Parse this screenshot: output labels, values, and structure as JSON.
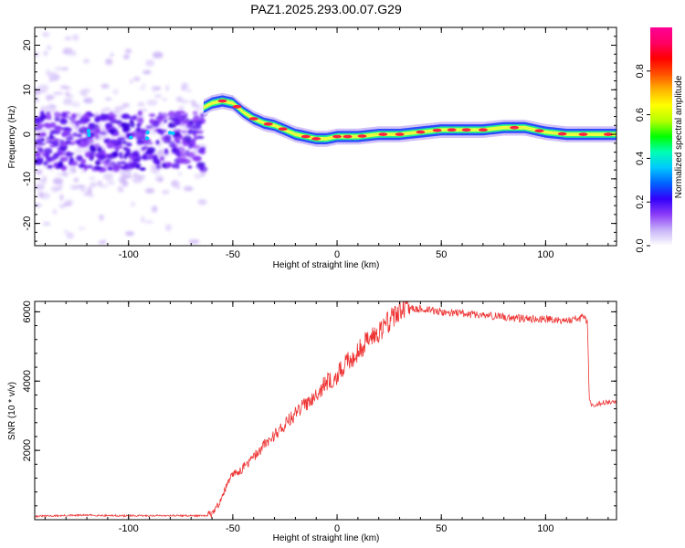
{
  "title": "PAZ1.2025.293.00.07.G29",
  "chart_data": [
    {
      "type": "heatmap",
      "name": "spectrogram",
      "xlabel": "Height of straight line (km)",
      "ylabel": "Frequency (Hz)",
      "xlim": [
        -145,
        134
      ],
      "ylim": [
        -25,
        24
      ],
      "xticks": [
        -100,
        -50,
        0,
        50,
        100
      ],
      "yticks": [
        -20,
        -10,
        0,
        10,
        20
      ],
      "xtick_labels": [
        "-100",
        "-50",
        "0",
        "50",
        "100"
      ],
      "ytick_labels": [
        "-20",
        "-10",
        "0",
        "10",
        "20"
      ],
      "noise_region": {
        "x_range": [
          -145,
          -64
        ],
        "core_frequency_band": [
          -8,
          5
        ],
        "halo_frequency_band": [
          -25,
          24
        ]
      },
      "signal_ridge": {
        "x": [
          -64,
          -60,
          -55,
          -50,
          -45,
          -40,
          -35,
          -30,
          -25,
          -20,
          -15,
          -10,
          -5,
          0,
          10,
          20,
          30,
          40,
          50,
          60,
          70,
          80,
          85,
          90,
          100,
          110,
          120,
          134
        ],
        "frequency": [
          6,
          7,
          7.5,
          7,
          5,
          3.5,
          2.5,
          2,
          1,
          0,
          -0.5,
          -1,
          -1,
          -0.5,
          -0.5,
          0,
          0,
          0.5,
          1,
          1,
          1,
          1.5,
          1.5,
          1.5,
          0.5,
          0,
          0,
          0
        ]
      },
      "colorbar": {
        "label": "Normalized spectral amplitude",
        "range": [
          0,
          1
        ],
        "ticks": [
          0.0,
          0.2,
          0.4,
          0.6,
          0.8
        ],
        "tick_labels": [
          "0.0",
          "0.2",
          "0.4",
          "0.6",
          "0.8"
        ],
        "colors": [
          "#ffffff",
          "#c8b4f8",
          "#8c3cf8",
          "#3200fa",
          "#0064ff",
          "#00c8ff",
          "#00ffb4",
          "#00ff00",
          "#b4ff00",
          "#ffff00",
          "#ffb400",
          "#ff5000",
          "#ff0000",
          "#ff0064",
          "#ff0096"
        ]
      }
    },
    {
      "type": "line",
      "name": "snr",
      "xlabel": "Height of straight line (km)",
      "ylabel": "SNR (10 * v/v)",
      "xlim": [
        -145,
        134
      ],
      "ylim": [
        0,
        6300
      ],
      "xticks": [
        -100,
        -50,
        0,
        50,
        100
      ],
      "yticks": [
        2000,
        4000,
        6000
      ],
      "xtick_labels": [
        "-100",
        "-50",
        "0",
        "50",
        "100"
      ],
      "ytick_labels": [
        "2000",
        "4000",
        "6000"
      ],
      "color": "#ee3333",
      "series": [
        {
          "name": "SNR",
          "x": [
            -145,
            -120,
            -100,
            -80,
            -62,
            -58,
            -55,
            -52,
            -50,
            -47,
            -45,
            -40,
            -35,
            -30,
            -25,
            -20,
            -15,
            -10,
            -5,
            0,
            5,
            10,
            15,
            20,
            25,
            30,
            33,
            40,
            50,
            60,
            70,
            80,
            90,
            100,
            110,
            119,
            120,
            121,
            122,
            125,
            130,
            134
          ],
          "y": [
            100,
            130,
            110,
            120,
            110,
            300,
            700,
            1100,
            1300,
            1400,
            1500,
            1800,
            2150,
            2450,
            2750,
            3050,
            3350,
            3650,
            3950,
            4150,
            4550,
            4850,
            5200,
            5450,
            5750,
            6050,
            6100,
            6080,
            6000,
            5950,
            5900,
            5850,
            5800,
            5800,
            5750,
            5850,
            5700,
            3500,
            3300,
            3350,
            3400,
            3400
          ]
        }
      ]
    }
  ]
}
